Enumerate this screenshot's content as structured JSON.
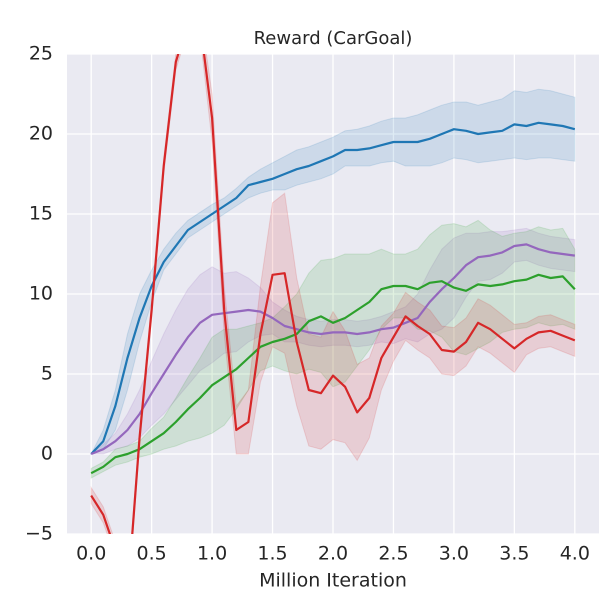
{
  "chart_data": {
    "type": "line",
    "title": "Reward (CarGoal)",
    "x_label": "Million Iteration",
    "x": [
      0,
      0.1,
      0.2,
      0.3,
      0.4,
      0.5,
      0.6,
      0.7,
      0.8,
      0.9,
      1.0,
      1.1,
      1.2,
      1.3,
      1.4,
      1.5,
      1.6,
      1.7,
      1.8,
      1.9,
      2.0,
      2.1,
      2.2,
      2.3,
      2.4,
      2.5,
      2.6,
      2.7,
      2.8,
      2.9,
      3.0,
      3.1,
      3.2,
      3.3,
      3.4,
      3.5,
      3.6,
      3.7,
      3.8,
      3.9,
      4.0
    ],
    "xlim": [
      -0.2,
      4.2
    ],
    "xticks": [
      {
        "value": 0,
        "label": "0.0"
      },
      0.5,
      {
        "value": 1,
        "label": "1.0"
      },
      1.5,
      {
        "value": 2,
        "label": "2.0"
      },
      2.5,
      {
        "value": 3,
        "label": "3.0"
      },
      3.5,
      {
        "value": 4,
        "label": "4.0"
      }
    ],
    "ylim": [
      -5,
      25
    ],
    "yticks": [
      {
        "value": -5,
        "label": "−5"
      },
      0,
      5,
      10,
      15,
      20,
      25
    ],
    "grid": true,
    "series": [
      {
        "color": "#1f77b4",
        "values": [
          0,
          0.8,
          3,
          6,
          8.5,
          10.5,
          12,
          13,
          14,
          14.5,
          15,
          15.5,
          16,
          16.8,
          17,
          17.2,
          17.5,
          17.8,
          18,
          18.3,
          18.6,
          19,
          19,
          19.1,
          19.3,
          19.5,
          19.5,
          19.5,
          19.7,
          20,
          20.3,
          20.2,
          20,
          20.1,
          20.2,
          20.6,
          20.5,
          20.7,
          20.6,
          20.5,
          20.3
        ],
        "lower": [
          0,
          0.3,
          1.5,
          4,
          7,
          9.5,
          11.5,
          12.5,
          13.5,
          14,
          14.5,
          15,
          15.5,
          16,
          16.3,
          16.5,
          16.5,
          16.8,
          17,
          17.2,
          17.5,
          18,
          18,
          18,
          18.2,
          18.3,
          18,
          18,
          18,
          18.2,
          18.5,
          18.4,
          18.2,
          18.3,
          18.4,
          18.5,
          18.4,
          18.5,
          18.5,
          18.4,
          18.3
        ],
        "upper": [
          0,
          1.5,
          4,
          7.5,
          10,
          11.5,
          12.8,
          13.8,
          14.6,
          15.1,
          15.6,
          16,
          16.6,
          17.3,
          17.8,
          18.2,
          18.6,
          19,
          19.2,
          19.5,
          19.8,
          20.2,
          20.3,
          20.5,
          20.8,
          21,
          21,
          21.2,
          21.5,
          21.8,
          22,
          22,
          21.8,
          22,
          22.2,
          22.7,
          22.6,
          22.8,
          22.7,
          22.5,
          22.3
        ]
      },
      {
        "color": "#9467bd",
        "values": [
          0,
          0.3,
          0.8,
          1.5,
          2.5,
          3.8,
          5,
          6.2,
          7.3,
          8.2,
          8.7,
          8.8,
          8.9,
          9,
          8.9,
          8.5,
          8,
          7.8,
          7.6,
          7.5,
          7.6,
          7.6,
          7.5,
          7.6,
          7.8,
          7.9,
          8.2,
          8.5,
          9.5,
          10.3,
          11,
          11.8,
          12.3,
          12.4,
          12.6,
          13,
          13.1,
          12.8,
          12.6,
          12.5,
          12.4
        ],
        "lower": [
          0,
          0,
          0.3,
          0.5,
          1,
          1.8,
          2.5,
          3.4,
          4.3,
          5.2,
          5.7,
          6.3,
          6.4,
          7,
          7.4,
          7.5,
          7,
          7,
          6.8,
          6.7,
          6.8,
          6.8,
          6.7,
          6.8,
          7,
          6.9,
          7.2,
          7,
          7.5,
          7.8,
          8.5,
          9.8,
          10.8,
          10.9,
          11.3,
          12,
          12.1,
          11.8,
          11.6,
          11.5,
          11.4
        ],
        "upper": [
          0,
          0.6,
          1.3,
          2.5,
          4,
          5.8,
          7.5,
          9,
          10.3,
          11.2,
          11.7,
          11.3,
          11.4,
          11,
          10.4,
          9.5,
          9,
          8.6,
          8.4,
          8.3,
          8.4,
          8.4,
          8.3,
          8.4,
          8.6,
          8.9,
          9.2,
          10,
          11.5,
          12.8,
          13.5,
          13.8,
          13.8,
          13.9,
          13.9,
          14,
          14.1,
          13.8,
          13.6,
          13.5,
          13.4
        ]
      },
      {
        "color": "#2ca02c",
        "values": [
          -1.2,
          -0.8,
          -0.2,
          0,
          0.3,
          0.8,
          1.3,
          2,
          2.8,
          3.5,
          4.3,
          4.8,
          5.3,
          6,
          6.7,
          7,
          7.2,
          7.5,
          8.3,
          8.6,
          8.2,
          8.5,
          9,
          9.5,
          10.3,
          10.5,
          10.5,
          10.3,
          10.7,
          10.8,
          10.4,
          10.2,
          10.6,
          10.5,
          10.6,
          10.8,
          10.9,
          11.2,
          11,
          11.1,
          10.3
        ],
        "lower": [
          -1.5,
          -1.1,
          -0.7,
          -0.5,
          -0.2,
          0,
          0.3,
          0.5,
          0.8,
          1,
          1.3,
          1.8,
          2.8,
          4,
          5.2,
          5.5,
          5.2,
          5,
          5.3,
          5.1,
          4.2,
          4.5,
          5.5,
          6.5,
          7.8,
          8.5,
          8.5,
          7.8,
          7.7,
          7.3,
          6.4,
          6.2,
          6.6,
          7,
          7.6,
          7.8,
          7.9,
          8.2,
          8,
          8.1,
          7.8
        ],
        "upper": [
          -0.9,
          -0.5,
          0.3,
          0.5,
          0.8,
          1.6,
          2.3,
          3.5,
          4.8,
          6,
          7.3,
          7.8,
          7.8,
          8,
          8.2,
          8.5,
          9.2,
          10,
          11.3,
          12.1,
          12.2,
          12.5,
          12.5,
          12.5,
          12.8,
          12.5,
          12.5,
          12.8,
          13.7,
          14.3,
          14.4,
          14.2,
          14.6,
          14,
          13.6,
          13.8,
          13.9,
          14.2,
          14,
          14.1,
          12.8
        ]
      },
      {
        "color": "#d62728",
        "values": [
          -2.6,
          -3.8,
          -6,
          -9,
          1,
          9,
          18,
          24.5,
          27,
          27,
          21,
          9,
          1.5,
          2,
          7.5,
          11.2,
          11.3,
          7,
          4,
          3.8,
          4.9,
          4.2,
          2.6,
          3.5,
          6,
          7.3,
          8.6,
          8,
          7.5,
          6.5,
          6.4,
          7,
          8.2,
          7.8,
          7.2,
          6.6,
          7.2,
          7.6,
          7.7,
          7.4,
          7.1
        ],
        "lower": [
          -3.1,
          -4.3,
          -6.5,
          -9.5,
          0.5,
          8.5,
          17.5,
          24,
          26.5,
          26.2,
          19.5,
          7.5,
          0,
          0,
          4.5,
          6.7,
          6.3,
          3,
          0.5,
          0.3,
          0.9,
          0.7,
          -0.4,
          1,
          4,
          5.8,
          7.1,
          6.5,
          6,
          5,
          4.9,
          5.5,
          6.7,
          6.3,
          5.7,
          5.1,
          6.2,
          6.6,
          6.7,
          6.4,
          6.1
        ],
        "upper": [
          -2.1,
          -3.3,
          -5.5,
          -8.5,
          1.5,
          9.5,
          18.5,
          25,
          27.5,
          27.8,
          22.5,
          10.5,
          3,
          4,
          10.5,
          15.7,
          16.3,
          11,
          7.5,
          7.3,
          8.9,
          7.7,
          5.6,
          6,
          8,
          8.8,
          10.1,
          9.5,
          9,
          8,
          7.9,
          8.5,
          9.7,
          9.3,
          8.7,
          8.1,
          8.2,
          8.6,
          8.7,
          8.4,
          8.1
        ]
      }
    ]
  }
}
